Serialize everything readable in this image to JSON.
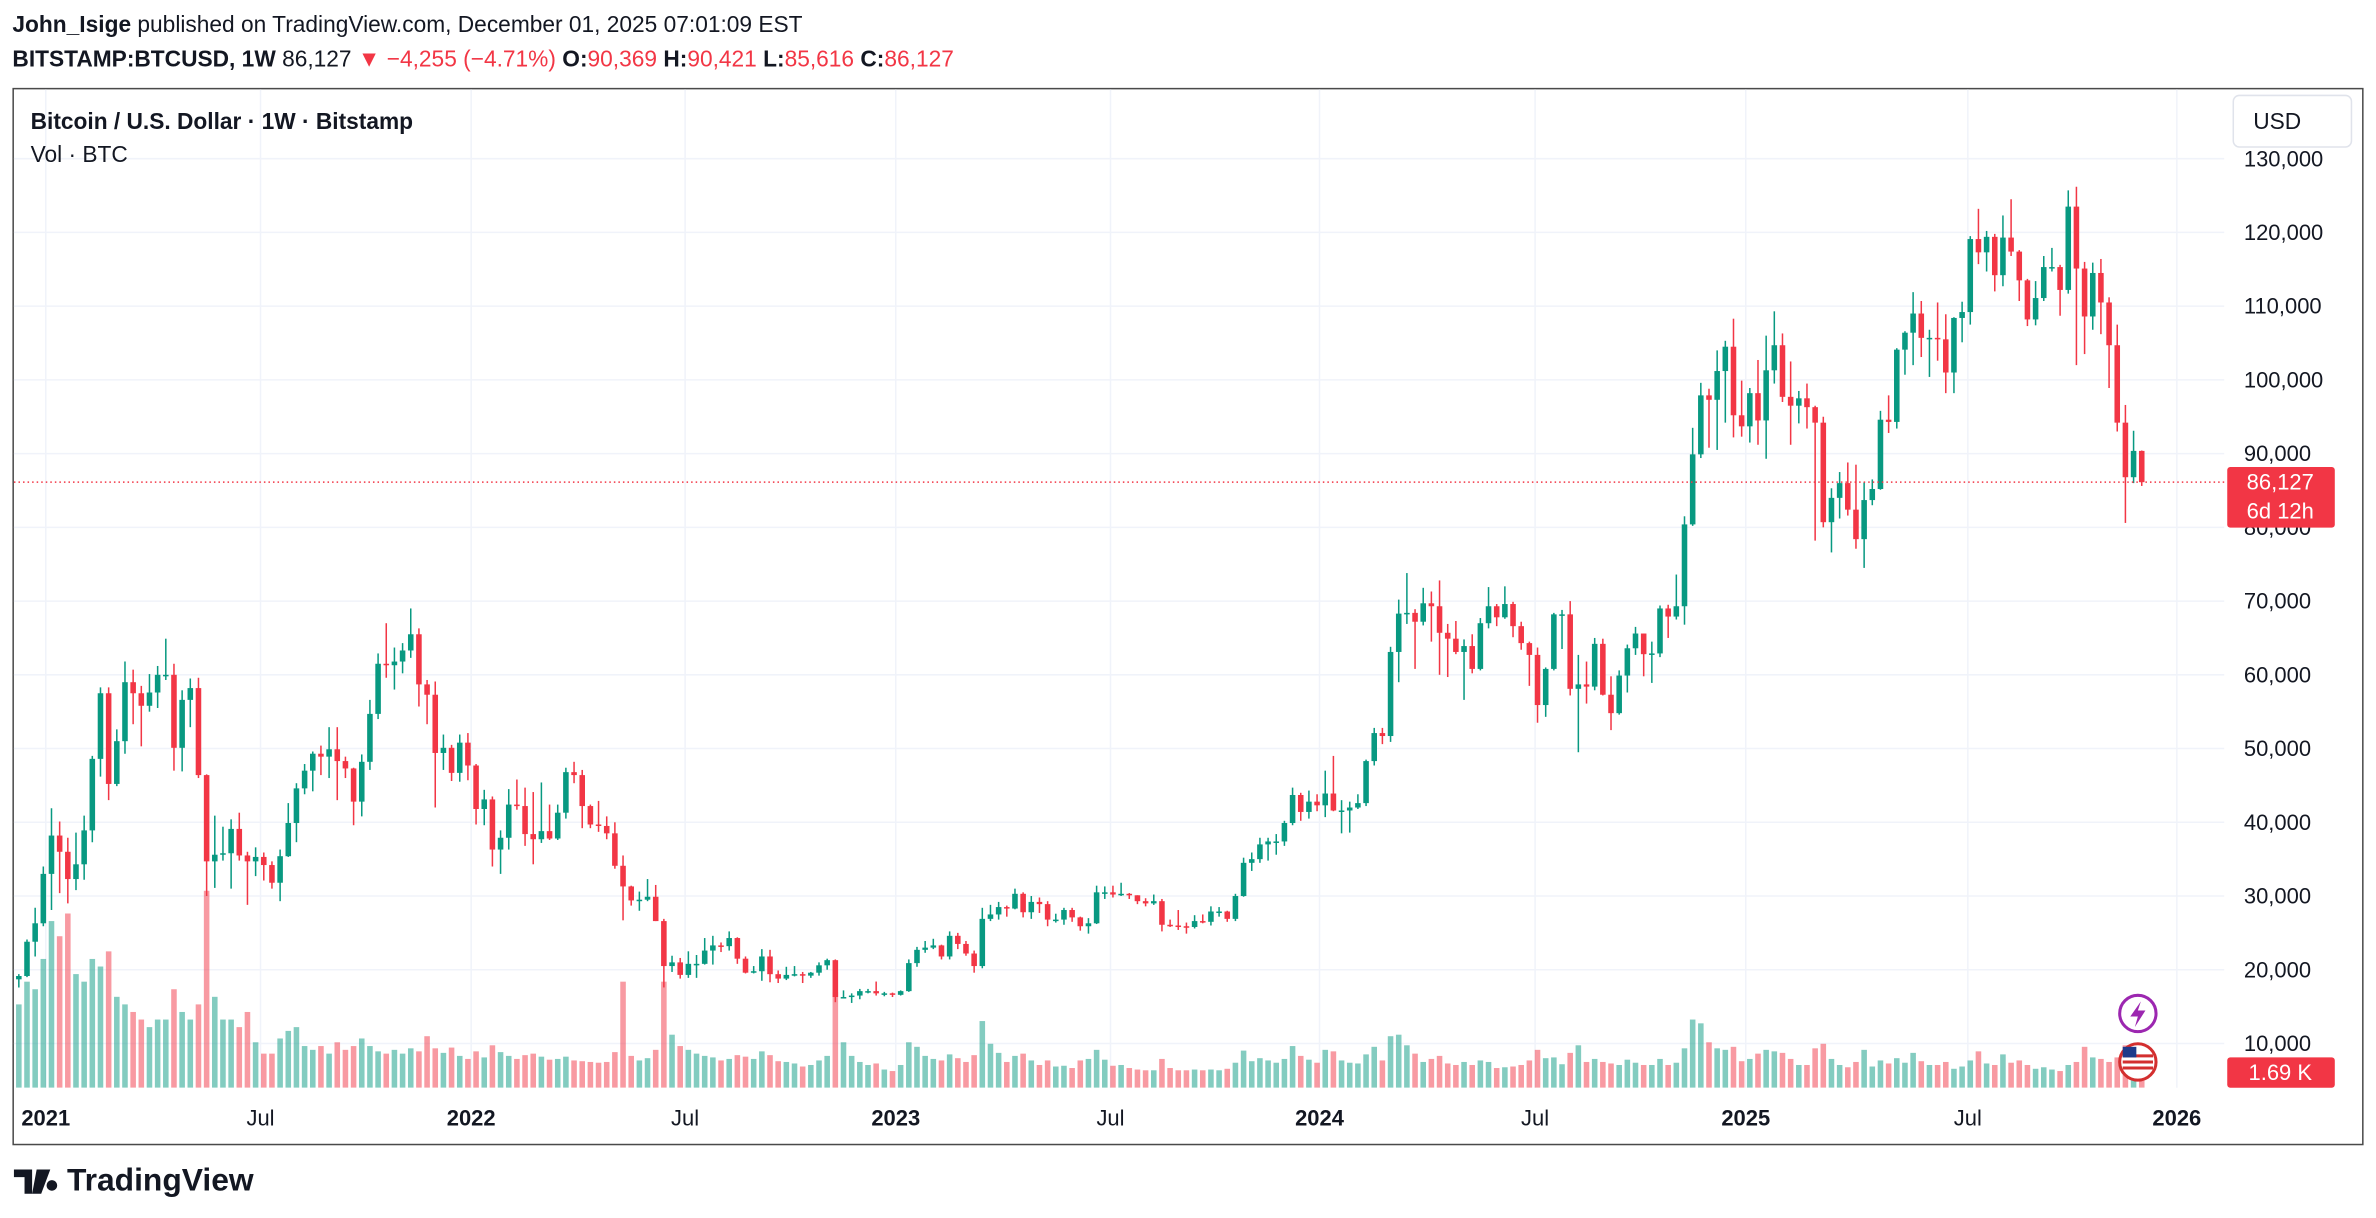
{
  "header": {
    "author": "John_Isige",
    "published": "published on TradingView.com, December 01, 2025 07:01:09 EST",
    "symbol": "BITSTAMP:BTCUSD, 1W",
    "last": "86,127",
    "arrow": "▼",
    "change": "−4,255 (−4.71%)",
    "o_label": "O:",
    "o": "90,369",
    "h_label": "H:",
    "h": "90,421",
    "l_label": "L:",
    "l": "85,616",
    "c_label": "C:",
    "c": "86,127"
  },
  "chart_data": {
    "type": "candlestick",
    "title": "Bitcoin / U.S. Dollar · 1W · Bitstamp",
    "volume_title": "Vol · BTC",
    "currency": "USD",
    "last_price_label": "86,127",
    "countdown": "6d 12h",
    "volume_label": "1.69 K",
    "up_color": "#089981",
    "down_color": "#f23645",
    "grid": true,
    "ylim": [
      4000,
      139400
    ],
    "yticks": [
      {
        "value": 10000,
        "label": "10,000"
      },
      {
        "value": 20000,
        "label": "20,000"
      },
      {
        "value": 30000,
        "label": "30,000"
      },
      {
        "value": 40000,
        "label": "40,000"
      },
      {
        "value": 50000,
        "label": "50,000"
      },
      {
        "value": 60000,
        "label": "60,000"
      },
      {
        "value": 70000,
        "label": "70,000"
      },
      {
        "value": 80000,
        "label": "80,000"
      },
      {
        "value": 90000,
        "label": "90,000"
      },
      {
        "value": 100000,
        "label": "100,000"
      },
      {
        "value": 110000,
        "label": "110,000"
      },
      {
        "value": 120000,
        "label": "120,000"
      },
      {
        "value": 130000,
        "label": "130,000"
      }
    ],
    "xlim": [
      -0.6,
      270.1
    ],
    "xticks": [
      {
        "value": 3.3,
        "label": "2021"
      },
      {
        "value": 29.6,
        "label": "Jul"
      },
      {
        "value": 55.4,
        "label": "2022"
      },
      {
        "value": 81.6,
        "label": "Jul"
      },
      {
        "value": 107.4,
        "label": "2023"
      },
      {
        "value": 133.7,
        "label": "Jul"
      },
      {
        "value": 159.3,
        "label": "2024"
      },
      {
        "value": 185.7,
        "label": "Jul"
      },
      {
        "value": 211.5,
        "label": "2025"
      },
      {
        "value": 238.7,
        "label": "Jul"
      },
      {
        "value": 264.3,
        "label": "2026"
      }
    ],
    "open": [
      18700,
      19150,
      23800,
      26300,
      33000,
      38200,
      36000,
      32300,
      34300,
      38900,
      48600,
      57500,
      45200,
      51000,
      59000,
      57500,
      55800,
      57600,
      60000,
      60000,
      50100,
      56600,
      58200,
      46400,
      34700,
      35600,
      35800,
      39100,
      35500,
      34700,
      35300,
      34200,
      31800,
      35400,
      39900,
      44600,
      47000,
      49300,
      48900,
      49900,
      48300,
      47300,
      42800,
      48200,
      54700,
      61500,
      61300,
      61800,
      63300,
      65500,
      58700,
      57300,
      49400,
      50100,
      46700,
      50800,
      47700,
      41800,
      43100,
      36300,
      37900,
      42400,
      42200,
      38400,
      37700,
      38800,
      37800,
      41300,
      46800,
      46400,
      42200,
      39700,
      39500,
      38500,
      34100,
      31300,
      29400,
      29500,
      29900,
      26600,
      20500,
      21000,
      19300,
      20800,
      20800,
      22600,
      23300,
      23200,
      24300,
      21500,
      19600,
      19800,
      21800,
      19400,
      18800,
      19300,
      19400,
      19200,
      19600,
      20600,
      21300,
      16300,
      16300,
      16500,
      17100,
      17100,
      16800,
      16800,
      16600,
      17100,
      20900,
      22700,
      23000,
      23300,
      21800,
      24600,
      23500,
      22200,
      20500,
      26900,
      27500,
      28500,
      28300,
      30300,
      27800,
      29200,
      28900,
      26800,
      26800,
      28100,
      27100,
      25900,
      26300,
      30500,
      30500,
      30200,
      30300,
      30100,
      29300,
      29000,
      29300,
      26100,
      26000,
      25900,
      25800,
      26600,
      26500,
      27900,
      27900,
      26900,
      30000,
      34500,
      35000,
      37000,
      37400,
      37400,
      39900,
      43700,
      41400,
      42800,
      42300,
      43900,
      41600,
      41600,
      42000,
      42600,
      48300,
      52100,
      51700,
      63100,
      68300,
      68400,
      67200,
      69700,
      69300,
      65700,
      64900,
      63100,
      63900,
      60800,
      67000,
      69300,
      67800,
      69600,
      66600,
      64300,
      62700,
      55900,
      60800,
      68200,
      68200,
      58100,
      58700,
      58400,
      64200,
      57300,
      54800,
      59900,
      63600,
      65600,
      62800,
      62900,
      69000,
      67900,
      69300,
      80400,
      89900,
      97900,
      97300,
      101200,
      104500,
      95200,
      93700,
      98200,
      94500,
      101300,
      104700,
      97700,
      96500,
      97500,
      96300,
      94200,
      80700,
      84000,
      86000,
      82400,
      78400,
      83700,
      85200,
      94600,
      94300,
      104100,
      106400,
      109000,
      105700,
      105700,
      105500,
      101000,
      108400,
      109200,
      119100,
      117300,
      119400,
      114200,
      119300,
      117400,
      113500,
      108200,
      111100,
      115300,
      115300,
      112200,
      123500,
      115100,
      108600,
      114500,
      110500,
      104700,
      94200,
      86800,
      90369
    ],
    "high": [
      19400,
      24100,
      28400,
      34000,
      41900,
      40100,
      37900,
      38600,
      40900,
      49000,
      58300,
      58300,
      52600,
      61800,
      60700,
      58500,
      60100,
      61200,
      64900,
      61500,
      57900,
      59500,
      59600,
      46500,
      40900,
      39400,
      40400,
      41300,
      36000,
      36600,
      35900,
      34700,
      36300,
      42600,
      45300,
      47900,
      49600,
      50400,
      52900,
      52900,
      48900,
      47400,
      49200,
      56600,
      62900,
      67000,
      63700,
      64300,
      69000,
      66300,
      59300,
      59100,
      51900,
      50500,
      51900,
      52100,
      47900,
      44400,
      43500,
      38900,
      44500,
      45800,
      44700,
      44100,
      45400,
      42400,
      42400,
      47400,
      48200,
      47100,
      42400,
      42900,
      40800,
      40000,
      35500,
      31400,
      30600,
      32300,
      31500,
      26900,
      21900,
      21600,
      22500,
      22000,
      24300,
      24600,
      23700,
      25200,
      24400,
      21800,
      20500,
      22800,
      22700,
      19900,
      20400,
      20500,
      19700,
      19700,
      21000,
      21500,
      21400,
      17200,
      16800,
      17400,
      17400,
      18400,
      17000,
      16900,
      17200,
      21400,
      23100,
      23900,
      24200,
      23400,
      25200,
      25000,
      23900,
      22600,
      28400,
      28800,
      29200,
      28700,
      31000,
      30500,
      30000,
      29800,
      29300,
      27600,
      28400,
      28400,
      27200,
      27000,
      31400,
      31300,
      31400,
      31800,
      30400,
      30100,
      29700,
      30200,
      29600,
      26800,
      28100,
      26400,
      27400,
      27500,
      28600,
      28500,
      28000,
      30300,
      35200,
      35900,
      37900,
      37900,
      38400,
      40200,
      44700,
      44000,
      44300,
      43800,
      47000,
      49000,
      43000,
      42800,
      43800,
      48500,
      52800,
      52800,
      63800,
      70200,
      73800,
      68900,
      71800,
      71300,
      72800,
      66900,
      67300,
      64800,
      65500,
      67700,
      71900,
      69600,
      72000,
      69900,
      67200,
      64500,
      63700,
      61000,
      68400,
      68800,
      70000,
      62700,
      61800,
      65000,
      64900,
      59800,
      60600,
      64100,
      66500,
      65600,
      64500,
      69400,
      69500,
      73600,
      81500,
      93500,
      99600,
      98800,
      104000,
      105300,
      108300,
      99900,
      98900,
      102700,
      106000,
      109300,
      106300,
      102500,
      98500,
      99500,
      96500,
      95000,
      85300,
      87500,
      88800,
      88500,
      86100,
      86500,
      95800,
      97900,
      104300,
      106600,
      111900,
      110700,
      106800,
      110500,
      108900,
      108500,
      110600,
      119500,
      123200,
      120200,
      119800,
      122300,
      124500,
      117600,
      113700,
      113400,
      116800,
      117900,
      115600,
      125700,
      126200,
      116000,
      115900,
      116400,
      111200,
      107500,
      96600,
      93100,
      90421
    ],
    "low": [
      17600,
      19000,
      21800,
      25900,
      28100,
      30400,
      29000,
      30800,
      32200,
      37300,
      46200,
      43000,
      44900,
      49300,
      53300,
      50300,
      55000,
      55500,
      59300,
      47000,
      46900,
      52900,
      46000,
      30000,
      31100,
      34800,
      31000,
      34800,
      28800,
      32700,
      32100,
      31000,
      29300,
      35300,
      37300,
      43800,
      44200,
      46400,
      46000,
      43000,
      46000,
      39600,
      40800,
      47100,
      54000,
      59600,
      58000,
      60200,
      62300,
      55700,
      53300,
      42000,
      47100,
      45600,
      45500,
      45700,
      39700,
      39600,
      34000,
      33000,
      36300,
      41700,
      36800,
      34300,
      37200,
      37600,
      37600,
      40500,
      45300,
      39200,
      39200,
      38700,
      37700,
      33700,
      26700,
      28700,
      28000,
      29300,
      26600,
      17600,
      19700,
      18800,
      18900,
      18900,
      20700,
      20700,
      22400,
      22600,
      20800,
      19500,
      19500,
      18500,
      18300,
      18200,
      18600,
      19100,
      18200,
      18900,
      19200,
      20000,
      15600,
      16200,
      15500,
      16000,
      16800,
      16500,
      16400,
      16300,
      16500,
      17000,
      20400,
      22300,
      22800,
      21400,
      21400,
      22800,
      21900,
      19600,
      20200,
      26600,
      26800,
      27200,
      28200,
      27100,
      26900,
      27700,
      25900,
      26400,
      26100,
      26500,
      25300,
      24900,
      26200,
      29600,
      29800,
      30000,
      29600,
      28900,
      28600,
      28800,
      25200,
      25800,
      25400,
      24900,
      25600,
      26300,
      26000,
      27200,
      26500,
      26600,
      29900,
      33400,
      34500,
      34800,
      35600,
      36800,
      39600,
      40200,
      40500,
      41500,
      40700,
      41500,
      38500,
      38600,
      41800,
      42200,
      47700,
      50600,
      50900,
      59000,
      66900,
      60800,
      66700,
      64500,
      60000,
      59700,
      62800,
      56600,
      60200,
      60600,
      66300,
      66600,
      67600,
      65100,
      63400,
      58500,
      53500,
      54300,
      60600,
      63500,
      57200,
      49500,
      56100,
      57900,
      57200,
      52500,
      54600,
      57600,
      62700,
      59800,
      58900,
      62400,
      65000,
      67500,
      66800,
      80200,
      89400,
      90800,
      90500,
      94200,
      92200,
      92300,
      91500,
      91200,
      89300,
      99500,
      97000,
      91200,
      94100,
      93400,
      78200,
      80000,
      76600,
      81200,
      81600,
      77100,
      74500,
      83000,
      85100,
      92800,
      93400,
      100700,
      102000,
      103100,
      100400,
      102600,
      98200,
      98200,
      105100,
      107500,
      115700,
      114700,
      112000,
      112700,
      116800,
      110700,
      107300,
      107400,
      110700,
      114700,
      108700,
      111700,
      102000,
      103500,
      106800,
      106200,
      98900,
      93000,
      80600,
      86000,
      85616
    ],
    "close": [
      19150,
      23800,
      26300,
      33000,
      38200,
      36000,
      32300,
      34300,
      38900,
      48600,
      57500,
      45200,
      51000,
      59000,
      57500,
      55800,
      57600,
      60000,
      60000,
      50100,
      56600,
      58200,
      46400,
      34700,
      35600,
      35800,
      39100,
      35500,
      34700,
      35300,
      34200,
      31800,
      35400,
      39900,
      44600,
      47000,
      49300,
      48900,
      49900,
      48300,
      47300,
      42800,
      48200,
      54700,
      61500,
      61300,
      61800,
      63300,
      65500,
      58700,
      57300,
      49400,
      50100,
      46700,
      50800,
      47700,
      41800,
      43100,
      36300,
      37900,
      42400,
      42200,
      38400,
      37700,
      38800,
      37800,
      41300,
      46800,
      46400,
      42200,
      39700,
      39500,
      38500,
      34100,
      31300,
      29400,
      29500,
      29900,
      26600,
      20500,
      21000,
      19300,
      20800,
      20800,
      22600,
      23300,
      23200,
      24300,
      21500,
      19600,
      19800,
      21800,
      19400,
      18800,
      19300,
      19400,
      19200,
      19600,
      20600,
      21300,
      16300,
      16300,
      16500,
      17100,
      17100,
      16800,
      16800,
      16600,
      17100,
      20900,
      22700,
      23000,
      23300,
      21800,
      24600,
      23500,
      22200,
      20500,
      26900,
      27500,
      28500,
      28300,
      30300,
      27800,
      29200,
      28900,
      26800,
      26800,
      28100,
      27100,
      25900,
      26300,
      30500,
      30500,
      30200,
      30300,
      30100,
      29300,
      29000,
      29300,
      26100,
      26000,
      25900,
      25800,
      26600,
      26500,
      27900,
      27900,
      26900,
      30000,
      34500,
      35000,
      37000,
      37400,
      37400,
      39900,
      43700,
      41400,
      42800,
      42300,
      43900,
      41600,
      41600,
      42000,
      42600,
      48300,
      52100,
      51700,
      63100,
      68300,
      68400,
      67200,
      69700,
      69300,
      65700,
      64900,
      63100,
      63900,
      60800,
      67000,
      69300,
      67800,
      69600,
      66600,
      64300,
      62700,
      55900,
      60800,
      68200,
      68200,
      58100,
      58700,
      58400,
      64200,
      57300,
      54800,
      59900,
      63600,
      65600,
      62800,
      62900,
      69000,
      67900,
      69300,
      80400,
      89900,
      97900,
      97300,
      101200,
      104500,
      95200,
      93700,
      98200,
      94500,
      101300,
      104700,
      97700,
      96500,
      97500,
      96300,
      94200,
      80700,
      84000,
      86000,
      82400,
      78400,
      83700,
      85200,
      94600,
      94300,
      104100,
      106400,
      109000,
      105700,
      105700,
      105500,
      101000,
      108400,
      109200,
      119100,
      117300,
      119400,
      114200,
      119300,
      117400,
      113500,
      108200,
      111100,
      115300,
      115300,
      112200,
      123500,
      115100,
      108600,
      114500,
      110500,
      104700,
      94200,
      86800,
      90369,
      86127
    ],
    "volume": [
      11000,
      14000,
      13000,
      17000,
      22000,
      20000,
      23000,
      15000,
      14000,
      17000,
      16000,
      18000,
      12000,
      11000,
      10000,
      9000,
      8000,
      9000,
      9000,
      13000,
      10000,
      9000,
      11000,
      26000,
      12000,
      9000,
      9000,
      8000,
      10000,
      6000,
      4500,
      4500,
      6500,
      7500,
      8000,
      5500,
      5000,
      5500,
      4500,
      6000,
      5000,
      5500,
      6500,
      5500,
      4800,
      4500,
      5000,
      4500,
      5200,
      4800,
      6800,
      5200,
      4600,
      5300,
      4200,
      3800,
      4800,
      4000,
      5600,
      4700,
      4200,
      3800,
      4300,
      4500,
      4100,
      3700,
      3800,
      4100,
      3600,
      3500,
      3400,
      3300,
      3400,
      4700,
      14000,
      4200,
      3600,
      3900,
      5000,
      14000,
      7000,
      5500,
      5000,
      4500,
      4200,
      4000,
      3600,
      3800,
      4300,
      4100,
      3800,
      4800,
      4300,
      3500,
      3400,
      3200,
      2800,
      3000,
      3600,
      4200,
      12600,
      6000,
      4200,
      3400,
      3000,
      3200,
      2400,
      2200,
      3000,
      6000,
      5400,
      4200,
      3800,
      3600,
      4400,
      3900,
      3400,
      4300,
      8800,
      5800,
      4600,
      3400,
      4200,
      4500,
      3600,
      3000,
      3600,
      2800,
      2900,
      2600,
      3600,
      3800,
      5000,
      3700,
      2900,
      3000,
      2600,
      2400,
      2300,
      2300,
      3800,
      2600,
      2300,
      2300,
      2400,
      2300,
      2400,
      2300,
      2500,
      3300,
      4900,
      3500,
      3900,
      3600,
      3300,
      3800,
      5500,
      4200,
      3700,
      3300,
      5000,
      4800,
      3600,
      3300,
      3200,
      4400,
      5400,
      3600,
      6800,
      7000,
      5600,
      4500,
      3400,
      3800,
      4200,
      3200,
      3000,
      3400,
      3000,
      3600,
      3400,
      2600,
      2700,
      2800,
      3000,
      3600,
      5000,
      3900,
      4000,
      3100,
      4600,
      5600,
      3400,
      3800,
      3400,
      3200,
      3000,
      3700,
      3300,
      3000,
      3000,
      3800,
      3000,
      3300,
      5200,
      9000,
      8500,
      6000,
      5200,
      5000,
      5400,
      3500,
      3800,
      4500,
      5000,
      4800,
      4600,
      3800,
      3000,
      3000,
      5200,
      5800,
      3800,
      3000,
      2700,
      3400,
      5000,
      2800,
      3600,
      3200,
      3900,
      3300,
      4600,
      3500,
      3000,
      3000,
      3400,
      2500,
      2800,
      3600,
      4800,
      3200,
      3000,
      4400,
      3300,
      3600,
      3000,
      2500,
      2700,
      2400,
      2200,
      3000,
      3400,
      5400,
      4000,
      3800,
      3400,
      4000,
      5600,
      5000,
      1690
    ]
  },
  "footer": {
    "brand": "TradingView"
  }
}
